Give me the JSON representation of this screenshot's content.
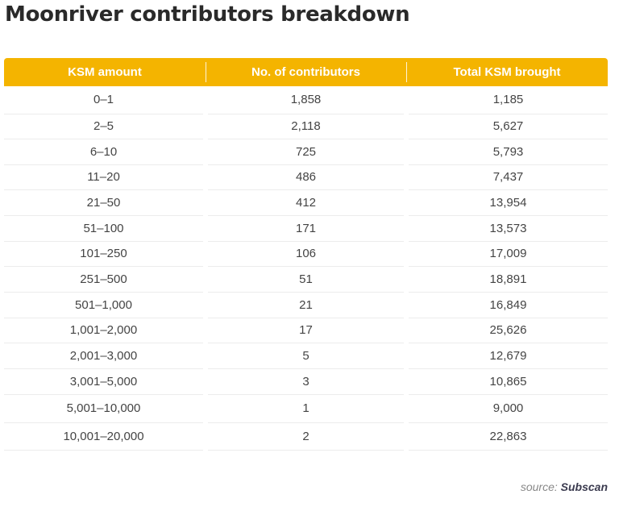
{
  "title": "Moonriver contributors breakdown",
  "table": {
    "headers": [
      "KSM amount",
      "No. of contributors",
      "Total KSM brought"
    ],
    "rows": [
      [
        "0–1",
        "1,858",
        "1,185"
      ],
      [
        "2–5",
        "2,118",
        "5,627"
      ],
      [
        "6–10",
        "725",
        "5,793"
      ],
      [
        "11–20",
        "486",
        "7,437"
      ],
      [
        "21–50",
        "412",
        "13,954"
      ],
      [
        "51–100",
        "171",
        "13,573"
      ],
      [
        "101–250",
        "106",
        "17,009"
      ],
      [
        "251–500",
        "51",
        "18,891"
      ],
      [
        "501–1,000",
        "21",
        "16,849"
      ],
      [
        "1,001–2,000",
        "17",
        "25,626"
      ],
      [
        "2,001–3,000",
        "5",
        "12,679"
      ],
      [
        "3,001–5,000",
        "3",
        "10,865"
      ],
      [
        "5,001–10,000",
        "1",
        "9,000"
      ],
      [
        "10,001–20,000",
        "2",
        "22,863"
      ]
    ]
  },
  "source": {
    "prefix": "source:",
    "name": "Subscan"
  },
  "colors": {
    "header_background": "#f4b400",
    "header_text": "#ffffff",
    "title_text": "#2a2a2a",
    "row_divider": "#ececec"
  }
}
